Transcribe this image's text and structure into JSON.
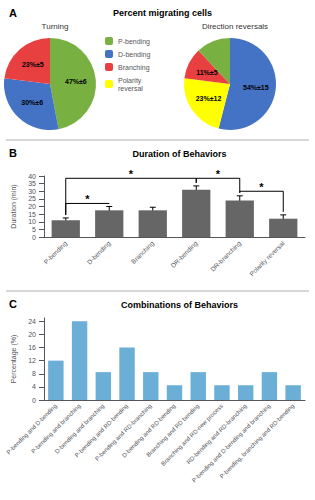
{
  "chart_data": [
    {
      "type": "pie",
      "title": "Percent migrating cells",
      "subtitle": "Turning",
      "annotations": [
        {
          "text": "A"
        }
      ],
      "categories": [
        "P-bending",
        "D-bending",
        "Branching"
      ],
      "values": [
        47,
        30,
        23
      ],
      "value_labels": [
        "47%±6",
        "30%±6",
        "23%±5"
      ],
      "colors": [
        "#78b041",
        "#4472c4",
        "#e84040"
      ],
      "legend": "upper right"
    },
    {
      "type": "pie",
      "subtitle": "Direction reversals",
      "categories": [
        "D-bending",
        "Polarity\nreversal",
        "Branching",
        "P-bending"
      ],
      "values": [
        54,
        23,
        11,
        12
      ],
      "value_labels": [
        "54%±15",
        "23%±12",
        "11%±5",
        null
      ],
      "colors": [
        "#4472c4",
        "#ffff00",
        "#e84040",
        "#78b041"
      ]
    },
    {
      "type": "bar",
      "title": "Duration of Behaviors",
      "annotations": [
        {
          "text": "B"
        },
        {
          "text": "*",
          "from": "P-bending",
          "to": "DR-bending",
          "y": 38.5
        },
        {
          "text": "*",
          "from": "P-bending",
          "to": "D-bending",
          "y": 22
        },
        {
          "text": "*",
          "from": "DR-bending",
          "to": "DR-branching",
          "y": 38.5
        },
        {
          "text": "*",
          "from": "DR-branching",
          "to": "Polarity reversal",
          "y": 30
        }
      ],
      "categories": [
        "P-bending",
        "D-bending",
        "Branching",
        "DR-bending",
        "DR-branching",
        "Polarity reversal"
      ],
      "values": [
        11,
        17.5,
        17.5,
        31,
        24,
        12
      ],
      "errors": [
        1.5,
        2.5,
        2.0,
        2.5,
        3.0,
        2.5
      ],
      "color": "#666666",
      "ylabel": "Duration (min)",
      "ylim": [
        0,
        40
      ],
      "yticks": [
        0,
        5,
        10,
        15,
        20,
        25,
        30,
        35,
        40
      ],
      "grid": false
    },
    {
      "type": "bar",
      "title": "Combinations of Behaviors",
      "annotations": [
        {
          "text": "C"
        }
      ],
      "categories": [
        "P-bending and D-bending",
        "P-bending and branching",
        "D-bending and branching",
        "P-bending and RD-bending",
        "P-bending and RD-branching",
        "D-bending and RD-bending",
        "Branching and RD bending",
        "Branching and RD-new process",
        "RD-bending and RD-branching",
        "P-bending and D-bending and branching",
        "P-bending, branching and RD-bending"
      ],
      "values": [
        12,
        24,
        8.5,
        16,
        8.5,
        4.5,
        8.5,
        4.5,
        4.5,
        8.5,
        4.5
      ],
      "color": "#6baed6",
      "ylabel": "Percentage (%)",
      "ylim": [
        0,
        25
      ],
      "yticks": [
        0,
        4,
        8,
        12,
        16,
        20,
        24
      ],
      "grid": false
    }
  ]
}
